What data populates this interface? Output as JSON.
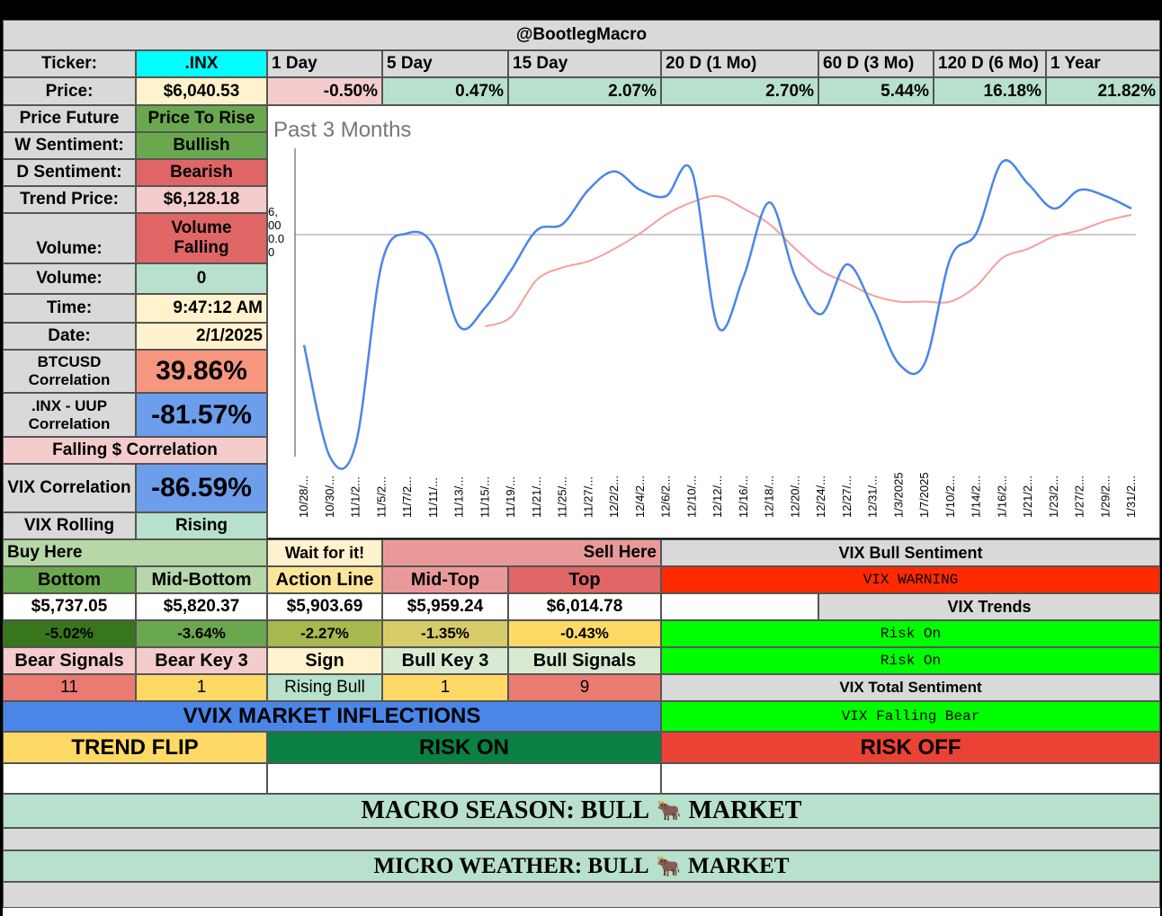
{
  "header": {
    "title": "@BootlegMacro"
  },
  "ticker_row": {
    "label": "Ticker:",
    "value": ".INX",
    "periods": [
      "1 Day",
      "5 Day",
      "15 Day",
      "20 D (1 Mo)",
      "60 D (3 Mo)",
      "120 D (6 Mo)",
      "1 Year"
    ]
  },
  "price_row": {
    "label": "Price:",
    "value": "$6,040.53",
    "changes": [
      "-0.50%",
      "0.47%",
      "2.07%",
      "2.70%",
      "5.44%",
      "16.18%",
      "21.82%"
    ]
  },
  "left_panel": {
    "price_future": {
      "label": "Price Future",
      "value": "Price To Rise"
    },
    "w_sentiment": {
      "label": "W Sentiment:",
      "value": "Bullish"
    },
    "d_sentiment": {
      "label": "D Sentiment:",
      "value": "Bearish"
    },
    "trend_price": {
      "label": "Trend Price:",
      "value": "$6,128.18"
    },
    "volume_trend": {
      "label": "Volume:",
      "value": "Volume Falling"
    },
    "volume": {
      "label": "Volume:",
      "value": "0"
    },
    "time": {
      "label": "Time:",
      "value": "9:47:12 AM"
    },
    "date": {
      "label": "Date:",
      "value": "2/1/2025"
    },
    "btc_corr": {
      "label": "BTCUSD Correlation",
      "value": "39.86%"
    },
    "uup_corr": {
      "label": ".INX - UUP Correlation",
      "value": "-81.57%"
    },
    "falling_corr": {
      "label": "Falling $ Correlation"
    },
    "vix_corr": {
      "label": "VIX Correlation",
      "value": "-86.59%"
    },
    "vix_rolling": {
      "label": "VIX Rolling",
      "value": "Rising"
    }
  },
  "chart_data": {
    "type": "line",
    "title": "Past 3 Months",
    "x": [
      "10/28/...",
      "10/30/...",
      "11/1/2...",
      "11/5/2...",
      "11/7/2...",
      "11/11/...",
      "11/13/...",
      "11/15/...",
      "11/19/...",
      "11/21/...",
      "11/25/...",
      "11/27/...",
      "12/2/2...",
      "12/4/2...",
      "12/6/2...",
      "12/10/...",
      "12/12/...",
      "12/16/...",
      "12/18/...",
      "12/20/...",
      "12/24/...",
      "12/27/...",
      "12/31/...",
      "1/3/2025",
      "1/7/2025",
      "1/10/2...",
      "1/14/2...",
      "1/16/2...",
      "1/21/2...",
      "1/23/2...",
      "1/27/2...",
      "1/29/2...",
      "1/31/2..."
    ],
    "y_tick_labels": [
      "6,",
      "00",
      "0.0",
      "0"
    ],
    "series": [
      {
        "color": "#4a86e8",
        "values": [
          0.36,
          0.0,
          0.04,
          0.62,
          0.72,
          0.68,
          0.42,
          0.48,
          0.6,
          0.73,
          0.75,
          0.86,
          0.92,
          0.86,
          0.84,
          0.92,
          0.42,
          0.58,
          0.82,
          0.58,
          0.46,
          0.62,
          0.48,
          0.3,
          0.3,
          0.64,
          0.72,
          0.95,
          0.88,
          0.8,
          0.86,
          0.84,
          0.8
        ]
      },
      {
        "color": "#f4a09c",
        "values": [
          null,
          null,
          null,
          null,
          null,
          null,
          null,
          0.42,
          0.45,
          0.57,
          0.61,
          0.63,
          0.67,
          0.72,
          0.78,
          0.82,
          0.84,
          0.8,
          0.75,
          0.67,
          0.6,
          0.56,
          0.52,
          0.5,
          0.5,
          0.5,
          0.55,
          0.64,
          0.67,
          0.71,
          0.73,
          0.76,
          0.78
        ]
      }
    ]
  },
  "levels": {
    "buy_here": "Buy Here",
    "wait": "Wait for it!",
    "sell_here": "Sell Here",
    "names": [
      "Bottom",
      "Mid-Bottom",
      "Action Line",
      "Mid-Top",
      "Top"
    ],
    "prices": [
      "$5,737.05",
      "$5,820.37",
      "$5,903.69",
      "$5,959.24",
      "$6,014.78"
    ],
    "pcts": [
      "-5.02%",
      "-3.64%",
      "-2.27%",
      "-1.35%",
      "-0.43%"
    ]
  },
  "signals": {
    "headers": [
      "Bear Signals",
      "Bear Key 3",
      "Sign",
      "Bull Key 3",
      "Bull Signals"
    ],
    "values": [
      "11",
      "1",
      "Rising Bull",
      "1",
      "9"
    ]
  },
  "vix": {
    "bull_sentiment_label": "VIX Bull Sentiment",
    "warning": "VIX WARNING",
    "trends_label": "VIX Trends",
    "trend1": "Risk On",
    "trend2": "Risk On",
    "total_label": "VIX Total Sentiment",
    "total_value": "VIX Falling Bear"
  },
  "inflections": {
    "title": "VVIX MARKET INFLECTIONS",
    "trend_flip": "TREND FLIP",
    "risk_on": "RISK ON",
    "risk_off": "RISK OFF"
  },
  "macro": {
    "season": "MACRO SEASON: BULL",
    "season_end": "MARKET",
    "weather": "MICRO WEATHER: BULL",
    "weather_end": "MARKET",
    "icon": "🐂"
  },
  "colors": {
    "green_dark": "#6aa84f",
    "red": "#e06666",
    "blue": "#6d9eeb",
    "cyan": "#00ffff",
    "light_green": "#b7e1cd",
    "pink": "#f4cccc",
    "yellow": "#ffd966",
    "bright_green": "#00ff00"
  }
}
